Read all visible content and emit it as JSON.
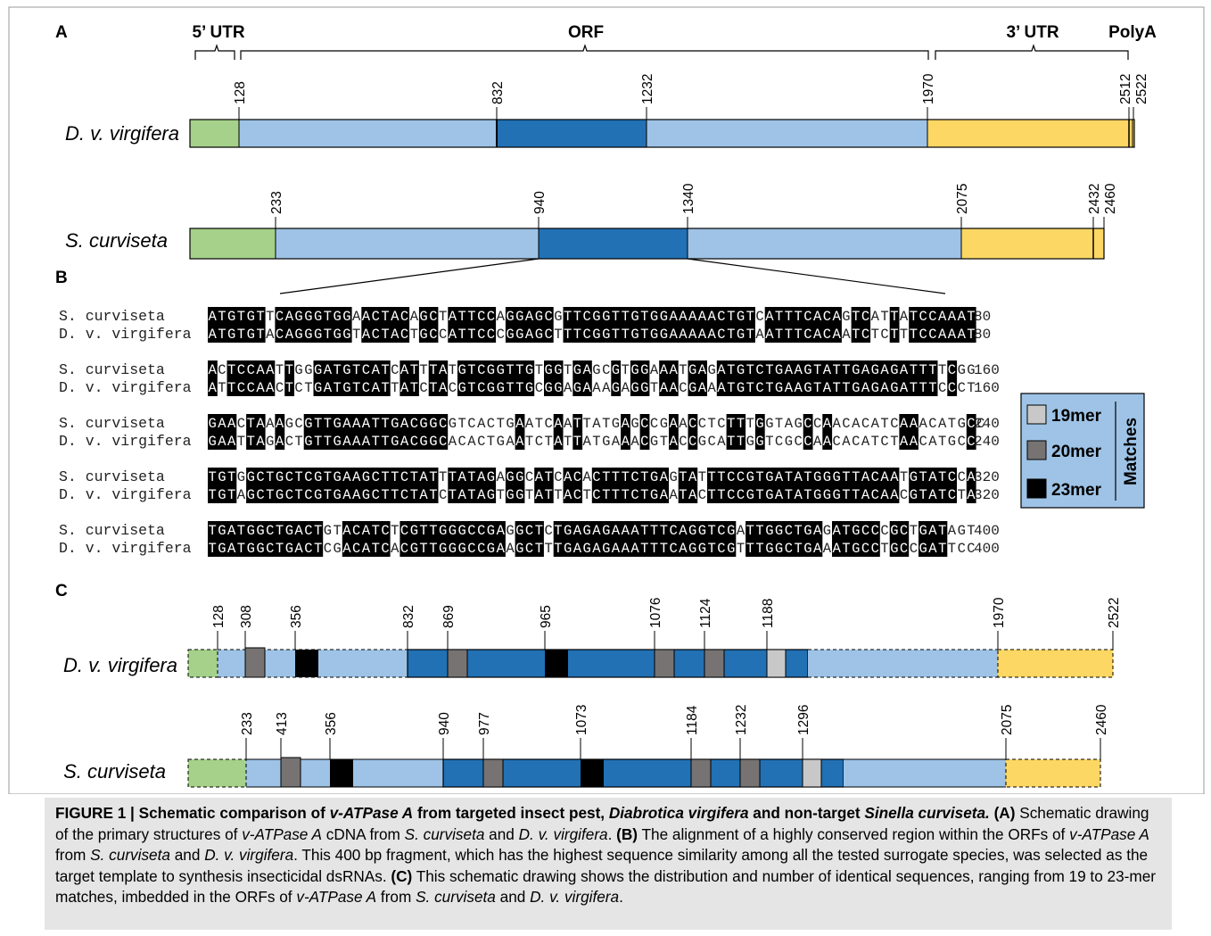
{
  "panels": {
    "a": "A",
    "b": "B",
    "c": "C"
  },
  "colors": {
    "utr5": "#a5d18a",
    "orf_light": "#9ec3e6",
    "orf_dark": "#2271b5",
    "utr3": "#fdd764",
    "m19": "#c8c8c8",
    "m20": "#777373",
    "m23": "#000000",
    "legend_bg": "#9ec3e6",
    "caption_bg": "#e5e5e5"
  },
  "region_labels": {
    "utr5": "5’ UTR",
    "orf": "ORF",
    "utr3": "3’ UTR",
    "polya": "PolyA"
  },
  "species": {
    "dvv": "D. v. virgifera",
    "sc": "S. curviseta"
  },
  "panel_a": {
    "dvv_ticks": [
      "128",
      "832",
      "1232",
      "1970",
      "2512",
      "2522"
    ],
    "sc_ticks": [
      "233",
      "940",
      "1340",
      "2075",
      "2432",
      "2460"
    ]
  },
  "alignment": [
    {
      "sc": "ATGTGTTCAGGGTGGAACTACAGCTATTCCAGGAGCGTTCGGTTGTGGAAAAACTGTCATTTCACAGTCATTATCCAAAT",
      "dv": "ATGTGTACAGGGTGGTACTACTGCCATTCCCGGAGCTTTCGGTTGTGGAAAAACTGTAATTTCACAATCTCTTTCCAAAT",
      "count": "80"
    },
    {
      "sc": "ACTCCAATTGGGATGTCATCATTTATGTCGGTTGTGGTGAGCGTGGAAATGAGATGTCTGAAGTATTGAGAGATTTTCGG",
      "dv": "ATTCCAACTCTGATGTCATTATCTACGTCGGTTGCGGAGAAAGAGGTAACGAAATGTCTGAAGTATTGAGAGATTTCCCT",
      "count": "160"
    },
    {
      "sc": "GAACTAAAGCGTTGAAATTGACGGCGTCACTGAATCAATTATGAGCCGAACCTCTTTGGTAGCCAACACATCAAACATGCC",
      "dv": "GAATTAGACTGTTGAAATTGACGGCACACTGAATCTATTATGAAACGTACCGCATTGGTCGCCAACACATCTAACATGCC",
      "count": "240"
    },
    {
      "sc": "TGTGGCTGCTCGTGAAGCTTCTATTTATAGAGGCATCACACTTTCTGAGTATTTCCGTGATATGGGTTACAATGTATCCA",
      "dv": "TGTAGCTGCTCGTGAAGCTTCTATCTATAGTGGTATTACTCTTTCTGAATACTTCCGTGATATGGGTTACAACGTATCTA",
      "count": "320"
    },
    {
      "sc": "TGATGGCTGACTGTACATCTCGTTGGGCCGAGGCTCTGAGAGAAATTTCAGGTCGATTGGCTGAGATGCCCGCTGATAGT",
      "dv": "TGATGGCTGACTCGACATCACGTTGGGCCGAAGCTTTGAGAGAAATTTCAGGTCGTTTGGCTGAAATGCCTGCCGATTCC",
      "count": "400"
    }
  ],
  "legend": {
    "m19": "19mer",
    "m20": "20mer",
    "m23": "23mer",
    "title": "Matches"
  },
  "panel_c": {
    "dvv_ticks": [
      "128",
      "308",
      "356",
      "832",
      "869",
      "965",
      "1076",
      "1124",
      "1188",
      "1970",
      "2522"
    ],
    "sc_ticks": [
      "233",
      "413",
      "356",
      "940",
      "977",
      "1073",
      "1184",
      "1232",
      "1296",
      "2075",
      "2460"
    ]
  },
  "caption": {
    "label": "FIGURE 1 | ",
    "title_1": "Schematic comparison of ",
    "title_gene": "v-ATPase A",
    "title_2": " from targeted insect pest, ",
    "title_pest": "Diabrotica virgifera",
    "title_3": " and non-target ",
    "title_nontarget": "Sinella curviseta.",
    "a_label": " (A)",
    "a_1": " Schematic drawing of the primary structures of ",
    "a_gene": "v-ATPase A",
    "a_2": " cDNA from ",
    "a_sc": "S. curviseta",
    "a_3": " and ",
    "a_dvv": "D. v. virgifera",
    "a_4": ". ",
    "b_label": "(B)",
    "b_1": " The alignment of a highly conserved region within the ORFs of ",
    "b_gene": "v-ATPase A",
    "b_2": " from ",
    "b_sc": "S. curviseta",
    "b_3": " and ",
    "b_dvv": "D. v. virgifera",
    "b_4": ". This 400 bp fragment, which has the highest sequence similarity among all the tested surrogate species, was selected as the target template to synthesis insecticidal dsRNAs. ",
    "c_label": "(C)",
    "c_1": " This schematic drawing shows the distribution and number of identical sequences, ranging from 19 to 23-mer matches, imbedded in the ORFs of ",
    "c_gene": "v-ATPase A",
    "c_2": " from ",
    "c_sc": "S. curviseta",
    "c_3": " and ",
    "c_dvv": "D. v. virgifera",
    "c_4": "."
  }
}
